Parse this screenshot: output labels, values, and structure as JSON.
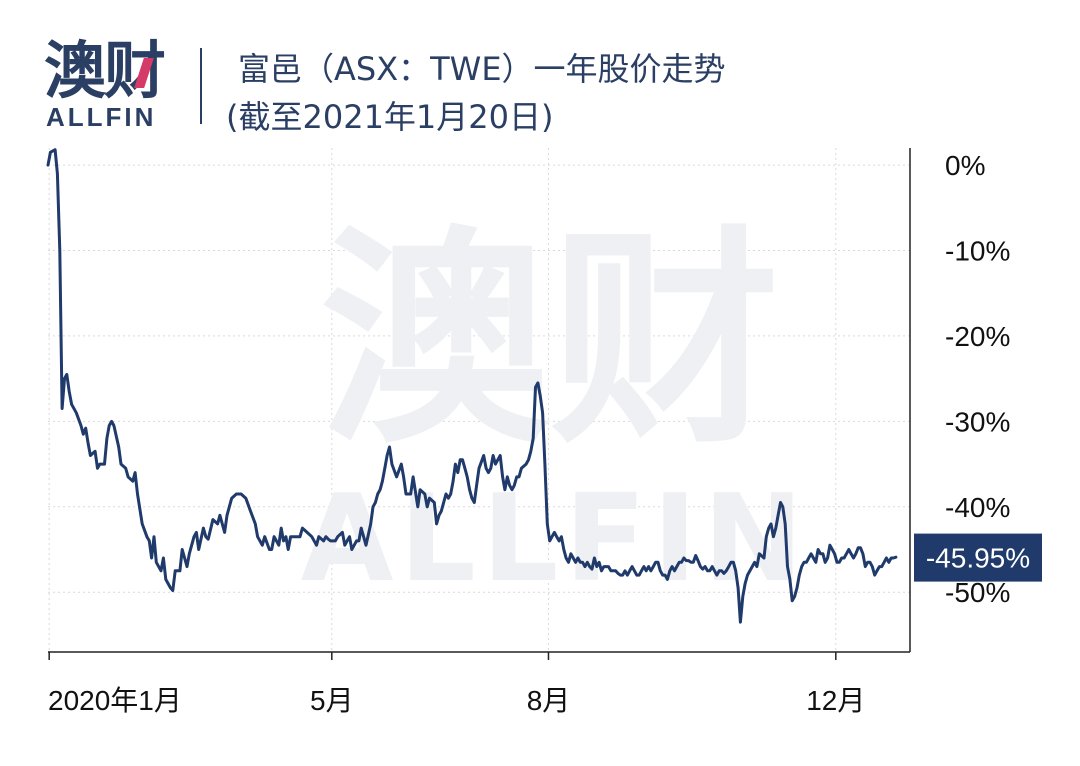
{
  "header": {
    "logo_cn": "澳财",
    "logo_en": "ALLFIN",
    "title": "富邑（ASX：TWE）一年股价走势",
    "subtitle": "(截至2021年1月20日)"
  },
  "watermark": {
    "cn": "澳财",
    "en": "ALLFIN"
  },
  "colors": {
    "line": "#1f3a6b",
    "callout_bg": "#1f3a6b",
    "grid": "#d9d9d9",
    "axis": "#222222"
  },
  "chart_data": {
    "type": "line",
    "title": "富邑（ASX：TWE）一年股价走势",
    "subtitle": "(截至2021年1月20日)",
    "xlabel": "",
    "ylabel": "",
    "x_tick_labels": [
      {
        "label": "2020年1月",
        "x": 0.5
      },
      {
        "label": "5月",
        "x": 120.5
      },
      {
        "label": "8月",
        "x": 212.5
      },
      {
        "label": "12月",
        "x": 334.5
      }
    ],
    "y_ticks": [
      0,
      -10,
      -20,
      -30,
      -40,
      -50
    ],
    "y_tick_labels": [
      "0%",
      "-10%",
      "-20%",
      "-30%",
      "-40%",
      "-50%"
    ],
    "xlim": [
      0,
      366
    ],
    "ylim": [
      -57,
      2
    ],
    "grid": true,
    "callout": {
      "label": "-45.95%",
      "value": -45.95
    },
    "series": [
      {
        "values": [
          [
            0,
            0
          ],
          [
            1,
            1.5
          ],
          [
            3,
            1.8
          ],
          [
            4,
            -1
          ],
          [
            5,
            -10
          ],
          [
            6,
            -28.5
          ],
          [
            7,
            -25
          ],
          [
            8,
            -24.5
          ],
          [
            9,
            -26.5
          ],
          [
            10,
            -28
          ],
          [
            12,
            -29
          ],
          [
            14,
            -30.5
          ],
          [
            15,
            -31.5
          ],
          [
            16,
            -30.8
          ],
          [
            17,
            -32.5
          ],
          [
            18,
            -34
          ],
          [
            20,
            -33.5
          ],
          [
            21,
            -35.5
          ],
          [
            22,
            -35
          ],
          [
            24,
            -35
          ],
          [
            25,
            -32
          ],
          [
            26,
            -30.5
          ],
          [
            27,
            -30
          ],
          [
            28,
            -30.5
          ],
          [
            30,
            -33
          ],
          [
            31,
            -35
          ],
          [
            33,
            -35.5
          ],
          [
            34,
            -36.5
          ],
          [
            36,
            -37
          ],
          [
            37,
            -36
          ],
          [
            38,
            -38.5
          ],
          [
            40,
            -42
          ],
          [
            42,
            -43.5
          ],
          [
            43,
            -44
          ],
          [
            44,
            -46
          ],
          [
            45,
            -43.5
          ],
          [
            46,
            -46.5
          ],
          [
            48,
            -47.5
          ],
          [
            49,
            -46
          ],
          [
            50,
            -48.5
          ],
          [
            52,
            -49.5
          ],
          [
            53,
            -49.8
          ],
          [
            54,
            -47.5
          ],
          [
            56,
            -47.5
          ],
          [
            57,
            -45
          ],
          [
            58,
            -46
          ],
          [
            59,
            -47
          ],
          [
            60,
            -45.5
          ],
          [
            62,
            -43.5
          ],
          [
            63,
            -43
          ],
          [
            64,
            -45
          ],
          [
            66,
            -42.5
          ],
          [
            67,
            -43.5
          ],
          [
            68,
            -43.8
          ],
          [
            70,
            -41.5
          ],
          [
            72,
            -42
          ],
          [
            73,
            -41
          ],
          [
            75,
            -43
          ],
          [
            76,
            -41
          ],
          [
            78,
            -39
          ],
          [
            80,
            -38.5
          ],
          [
            82,
            -38.5
          ],
          [
            84,
            -39
          ],
          [
            86,
            -40.5
          ],
          [
            88,
            -42
          ],
          [
            89,
            -43.5
          ],
          [
            91,
            -44.5
          ],
          [
            92,
            -43.5
          ],
          [
            94,
            -45
          ],
          [
            95,
            -45
          ],
          [
            96,
            -43.5
          ],
          [
            98,
            -44.5
          ],
          [
            99,
            -42.5
          ],
          [
            100,
            -44
          ],
          [
            101,
            -43.5
          ],
          [
            102,
            -45
          ],
          [
            103,
            -43.5
          ],
          [
            105,
            -43.5
          ],
          [
            107,
            -43.5
          ],
          [
            108,
            -42.5
          ],
          [
            110,
            -43
          ],
          [
            112,
            -43.5
          ],
          [
            114,
            -44.5
          ],
          [
            115,
            -43.5
          ],
          [
            117,
            -44
          ],
          [
            118,
            -43.5
          ],
          [
            119,
            -43.8
          ],
          [
            120,
            -44
          ],
          [
            122,
            -44
          ],
          [
            123,
            -43.5
          ],
          [
            125,
            -43
          ],
          [
            126,
            -44.5
          ],
          [
            127,
            -44
          ],
          [
            128,
            -43.5
          ],
          [
            129,
            -45
          ],
          [
            130,
            -44.5
          ],
          [
            131,
            -44
          ],
          [
            132,
            -44
          ],
          [
            133,
            -42.5
          ],
          [
            134,
            -43.5
          ],
          [
            135,
            -44.5
          ],
          [
            137,
            -42
          ],
          [
            138,
            -40
          ],
          [
            139,
            -39.5
          ],
          [
            140,
            -38.5
          ],
          [
            141,
            -38
          ],
          [
            142,
            -37
          ],
          [
            143,
            -35.5
          ],
          [
            144,
            -34
          ],
          [
            145,
            -33
          ],
          [
            146,
            -35
          ],
          [
            148,
            -36.5
          ],
          [
            150,
            -35
          ],
          [
            151,
            -36.5
          ],
          [
            152,
            -38.5
          ],
          [
            154,
            -38.5
          ],
          [
            155,
            -36.5
          ],
          [
            157,
            -40
          ],
          [
            158,
            -38
          ],
          [
            160,
            -38.5
          ],
          [
            161,
            -40
          ],
          [
            162,
            -39
          ],
          [
            164,
            -39.5
          ],
          [
            165,
            -42
          ],
          [
            166,
            -41
          ],
          [
            167,
            -40.5
          ],
          [
            169,
            -38.5
          ],
          [
            170,
            -39
          ],
          [
            171,
            -38.5
          ],
          [
            172,
            -37
          ],
          [
            173,
            -35
          ],
          [
            174,
            -36
          ],
          [
            175,
            -34.5
          ],
          [
            176,
            -34.5
          ],
          [
            177,
            -35.5
          ],
          [
            178,
            -36.5
          ],
          [
            179,
            -38
          ],
          [
            180,
            -39
          ],
          [
            181,
            -39.5
          ],
          [
            182,
            -37.5
          ],
          [
            183,
            -35.5
          ],
          [
            185,
            -34
          ],
          [
            186,
            -35.5
          ],
          [
            187,
            -36
          ],
          [
            188,
            -35.5
          ],
          [
            189,
            -34
          ],
          [
            190,
            -35
          ],
          [
            191,
            -34.5
          ],
          [
            192,
            -34
          ],
          [
            193,
            -36.5
          ],
          [
            194,
            -38
          ],
          [
            195,
            -36.5
          ],
          [
            196,
            -37.5
          ],
          [
            197,
            -38
          ],
          [
            198,
            -37.5
          ],
          [
            199,
            -36.5
          ],
          [
            200,
            -36.5
          ],
          [
            201,
            -35.5
          ],
          [
            203,
            -35
          ],
          [
            204,
            -34.5
          ],
          [
            205,
            -33.5
          ],
          [
            206,
            -32
          ],
          [
            207,
            -26
          ],
          [
            208,
            -25.5
          ],
          [
            209,
            -27
          ],
          [
            210,
            -29
          ],
          [
            211,
            -35
          ],
          [
            212,
            -42
          ],
          [
            213,
            -44
          ],
          [
            214,
            -43.5
          ],
          [
            215,
            -43
          ],
          [
            216,
            -43.5
          ],
          [
            217,
            -44
          ],
          [
            218,
            -43.5
          ],
          [
            219,
            -45
          ],
          [
            220,
            -46
          ],
          [
            221,
            -46.5
          ],
          [
            222,
            -45.5
          ],
          [
            223,
            -46
          ],
          [
            224,
            -46.5
          ],
          [
            225,
            -46
          ],
          [
            226,
            -46.5
          ],
          [
            227,
            -46.5
          ],
          [
            228,
            -47
          ],
          [
            229,
            -46.5
          ],
          [
            230,
            -47
          ],
          [
            231,
            -47.3
          ],
          [
            232,
            -46
          ],
          [
            233,
            -47
          ],
          [
            234,
            -46.5
          ],
          [
            235,
            -47.5
          ],
          [
            236,
            -47
          ],
          [
            237,
            -47
          ],
          [
            238,
            -47
          ],
          [
            239,
            -47.5
          ],
          [
            240,
            -47.5
          ],
          [
            241,
            -47.5
          ],
          [
            242,
            -47.8
          ],
          [
            243,
            -48
          ],
          [
            244,
            -48
          ],
          [
            245,
            -47.5
          ],
          [
            246,
            -48
          ],
          [
            247,
            -47.5
          ],
          [
            248,
            -47
          ],
          [
            249,
            -47.5
          ],
          [
            250,
            -48
          ],
          [
            251,
            -48
          ],
          [
            252,
            -47.5
          ],
          [
            253,
            -47
          ],
          [
            254,
            -47.5
          ],
          [
            255,
            -47
          ],
          [
            256,
            -47.5
          ],
          [
            257,
            -47
          ],
          [
            258,
            -46.5
          ],
          [
            259,
            -46.5
          ],
          [
            260,
            -47.5
          ],
          [
            261,
            -48
          ],
          [
            262,
            -48
          ],
          [
            263,
            -48.5
          ],
          [
            264,
            -47.5
          ],
          [
            265,
            -47
          ],
          [
            266,
            -47.5
          ],
          [
            267,
            -47
          ],
          [
            268,
            -46.5
          ],
          [
            269,
            -46.5
          ],
          [
            270,
            -46
          ],
          [
            271,
            -46.3
          ],
          [
            272,
            -46.3
          ],
          [
            273,
            -46.5
          ],
          [
            274,
            -46.5
          ],
          [
            275,
            -45.7
          ],
          [
            276,
            -46.3
          ],
          [
            277,
            -47
          ],
          [
            278,
            -47.3
          ],
          [
            279,
            -47
          ],
          [
            280,
            -47.5
          ],
          [
            281,
            -47.5
          ],
          [
            282,
            -47
          ],
          [
            283,
            -47.5
          ],
          [
            284,
            -48
          ],
          [
            285,
            -47.5
          ],
          [
            286,
            -47.5
          ],
          [
            287,
            -47.8
          ],
          [
            288,
            -47.5
          ],
          [
            289,
            -47
          ],
          [
            290,
            -46.5
          ],
          [
            291,
            -46.5
          ],
          [
            292,
            -47.5
          ],
          [
            293,
            -49.5
          ],
          [
            294,
            -53.5
          ],
          [
            295,
            -50.5
          ],
          [
            296,
            -49
          ],
          [
            297,
            -48
          ],
          [
            299,
            -47
          ],
          [
            300,
            -46.5
          ],
          [
            301,
            -47
          ],
          [
            302,
            -45.5
          ],
          [
            304,
            -46
          ],
          [
            305,
            -43.5
          ],
          [
            306,
            -42.5
          ],
          [
            307,
            -42
          ],
          [
            308,
            -43.5
          ],
          [
            309,
            -42.5
          ],
          [
            310,
            -41
          ],
          [
            311,
            -39.5
          ],
          [
            312,
            -40
          ],
          [
            313,
            -42
          ],
          [
            314,
            -47
          ],
          [
            315,
            -48.5
          ],
          [
            316,
            -51
          ],
          [
            317,
            -50.5
          ],
          [
            318,
            -49.5
          ],
          [
            319,
            -48
          ],
          [
            320,
            -47
          ],
          [
            321,
            -46.5
          ],
          [
            322,
            -46.5
          ],
          [
            323,
            -46
          ],
          [
            324,
            -45.5
          ],
          [
            325,
            -46
          ],
          [
            326,
            -46.5
          ],
          [
            327,
            -45
          ],
          [
            328,
            -45.5
          ],
          [
            329,
            -45.5
          ],
          [
            330,
            -46.5
          ],
          [
            331,
            -46
          ],
          [
            332,
            -44.5
          ],
          [
            333,
            -45
          ],
          [
            334,
            -45.5
          ],
          [
            335,
            -46.5
          ],
          [
            336,
            -46.5
          ],
          [
            337,
            -46
          ],
          [
            338,
            -46
          ],
          [
            339,
            -45.5
          ],
          [
            340,
            -45
          ],
          [
            341,
            -45.5
          ],
          [
            342,
            -46
          ],
          [
            343,
            -45.5
          ],
          [
            344,
            -44.8
          ],
          [
            345,
            -44.8
          ],
          [
            346,
            -45.5
          ],
          [
            347,
            -47
          ],
          [
            348,
            -46.5
          ],
          [
            349,
            -46.5
          ],
          [
            350,
            -47
          ],
          [
            351,
            -48
          ],
          [
            352,
            -47.5
          ],
          [
            353,
            -47
          ],
          [
            354,
            -47
          ],
          [
            355,
            -46.5
          ],
          [
            356,
            -46
          ],
          [
            357,
            -46.5
          ],
          [
            358,
            -46
          ],
          [
            359,
            -46
          ],
          [
            360,
            -45.9
          ]
        ]
      }
    ]
  }
}
